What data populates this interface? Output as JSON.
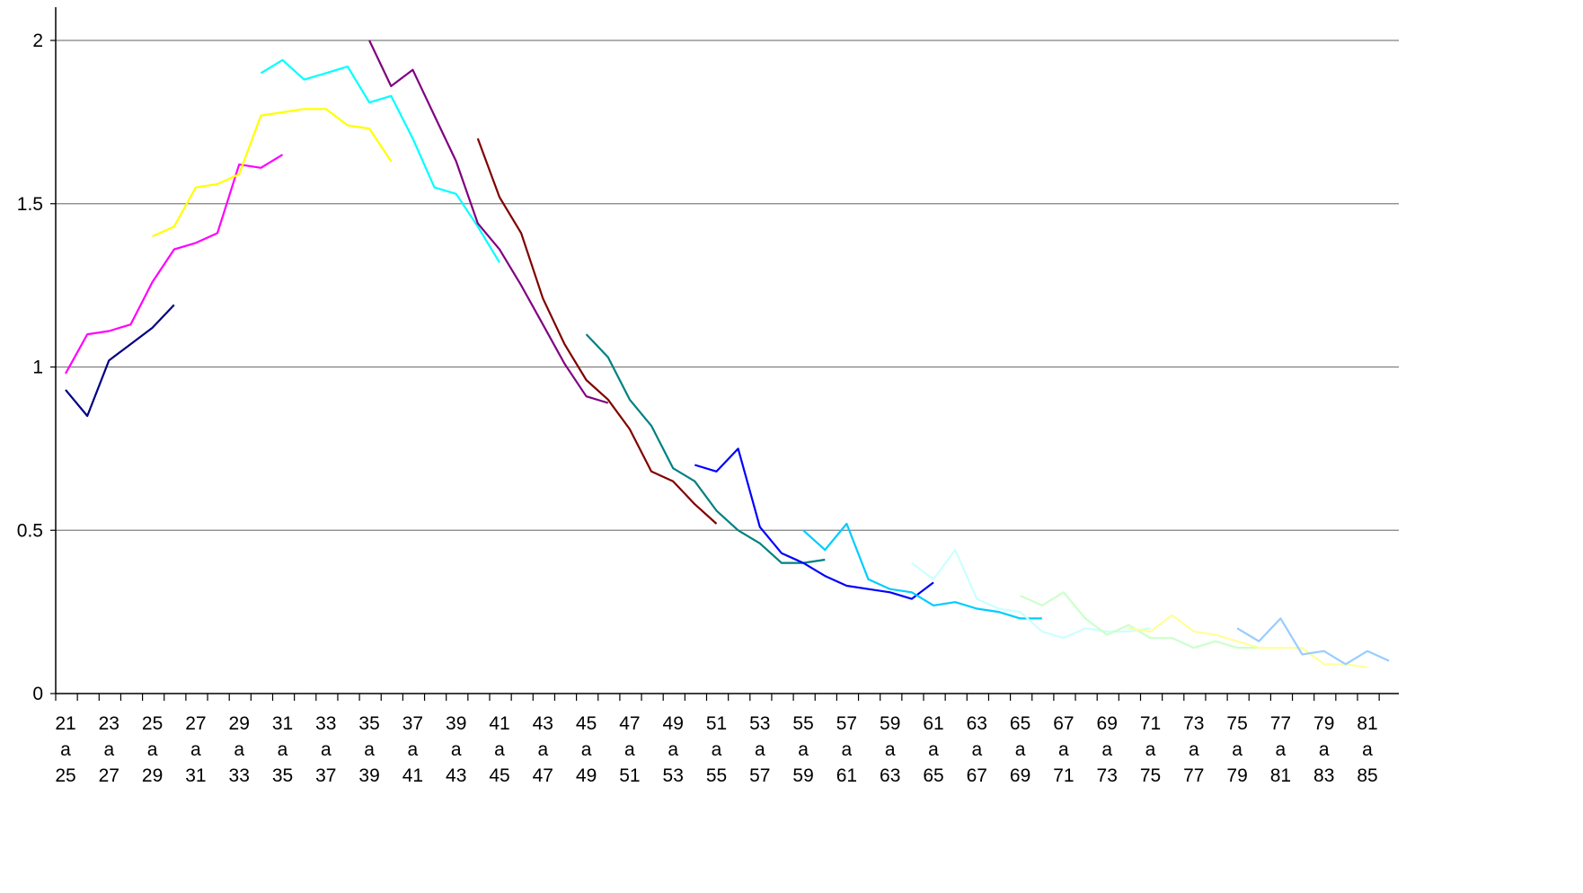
{
  "chart_data": {
    "type": "line",
    "title": "",
    "xlabel": "",
    "ylabel": "",
    "ylim": [
      0,
      2
    ],
    "yticks": [
      "0",
      "0.5",
      "1",
      "1.5",
      "2"
    ],
    "grid": true,
    "legend": "none",
    "x_ticks": [
      [
        "21",
        "a",
        "25"
      ],
      [
        "23",
        "a",
        "27"
      ],
      [
        "25",
        "a",
        "29"
      ],
      [
        "27",
        "a",
        "31"
      ],
      [
        "29",
        "a",
        "33"
      ],
      [
        "31",
        "a",
        "35"
      ],
      [
        "33",
        "a",
        "37"
      ],
      [
        "35",
        "a",
        "39"
      ],
      [
        "37",
        "a",
        "41"
      ],
      [
        "39",
        "a",
        "43"
      ],
      [
        "41",
        "a",
        "45"
      ],
      [
        "43",
        "a",
        "47"
      ],
      [
        "45",
        "a",
        "49"
      ],
      [
        "47",
        "a",
        "51"
      ],
      [
        "49",
        "a",
        "53"
      ],
      [
        "51",
        "a",
        "55"
      ],
      [
        "53",
        "a",
        "57"
      ],
      [
        "55",
        "a",
        "59"
      ],
      [
        "57",
        "a",
        "61"
      ],
      [
        "59",
        "a",
        "63"
      ],
      [
        "61",
        "a",
        "65"
      ],
      [
        "63",
        "a",
        "67"
      ],
      [
        "65",
        "a",
        "69"
      ],
      [
        "67",
        "a",
        "71"
      ],
      [
        "69",
        "a",
        "73"
      ],
      [
        "71",
        "a",
        "75"
      ],
      [
        "73",
        "a",
        "77"
      ],
      [
        "75",
        "a",
        "79"
      ],
      [
        "77",
        "a",
        "81"
      ],
      [
        "79",
        "a",
        "83"
      ],
      [
        "81",
        "a",
        "85"
      ]
    ],
    "series": [
      {
        "color": "#000080",
        "x": [
          21,
          22,
          23,
          24,
          25,
          26
        ],
        "values": [
          0.93,
          0.85,
          1.02,
          1.07,
          1.12,
          1.19
        ]
      },
      {
        "color": "#FF00FF",
        "x": [
          21,
          22,
          23,
          24,
          25,
          26,
          27,
          28,
          29,
          30,
          31
        ],
        "values": [
          0.98,
          1.1,
          1.11,
          1.13,
          1.26,
          1.36,
          1.38,
          1.41,
          1.62,
          1.61,
          1.65
        ]
      },
      {
        "color": "#FFFF00",
        "x": [
          25,
          26,
          27,
          28,
          29,
          30,
          31,
          32,
          33,
          34,
          35,
          36
        ],
        "values": [
          1.4,
          1.43,
          1.55,
          1.56,
          1.59,
          1.77,
          1.78,
          1.79,
          1.79,
          1.74,
          1.73,
          1.63
        ]
      },
      {
        "color": "#00FFFF",
        "x": [
          30,
          31,
          32,
          33,
          34,
          35,
          36,
          37,
          38,
          39,
          40,
          41
        ],
        "values": [
          1.9,
          1.94,
          1.88,
          1.9,
          1.92,
          1.81,
          1.83,
          1.7,
          1.55,
          1.53,
          1.43,
          1.32
        ]
      },
      {
        "color": "#800080",
        "x": [
          35,
          36,
          37,
          38,
          39,
          40,
          41,
          42,
          43,
          44,
          45,
          46
        ],
        "values": [
          2.0,
          1.86,
          1.91,
          1.77,
          1.63,
          1.44,
          1.36,
          1.25,
          1.13,
          1.01,
          0.91,
          0.89
        ]
      },
      {
        "color": "#800000",
        "x": [
          40,
          41,
          42,
          43,
          44,
          45,
          46,
          47,
          48,
          49,
          50,
          51
        ],
        "values": [
          1.7,
          1.52,
          1.41,
          1.21,
          1.07,
          0.96,
          0.9,
          0.81,
          0.68,
          0.65,
          0.58,
          0.52
        ]
      },
      {
        "color": "#008080",
        "x": [
          45,
          46,
          47,
          48,
          49,
          50,
          51,
          52,
          53,
          54,
          55,
          56
        ],
        "values": [
          1.1,
          1.03,
          0.9,
          0.82,
          0.69,
          0.65,
          0.56,
          0.5,
          0.46,
          0.4,
          0.4,
          0.41
        ]
      },
      {
        "color": "#0000FF",
        "x": [
          50,
          51,
          52,
          53,
          54,
          55,
          56,
          57,
          58,
          59,
          60,
          61
        ],
        "values": [
          0.7,
          0.68,
          0.75,
          0.51,
          0.43,
          0.4,
          0.36,
          0.33,
          0.32,
          0.31,
          0.29,
          0.34
        ]
      },
      {
        "color": "#00CCFF",
        "x": [
          55,
          56,
          57,
          58,
          59,
          60,
          61,
          62,
          63,
          64,
          65,
          66
        ],
        "values": [
          0.5,
          0.44,
          0.52,
          0.35,
          0.32,
          0.31,
          0.27,
          0.28,
          0.26,
          0.25,
          0.23,
          0.23
        ]
      },
      {
        "color": "#CCFFFF",
        "x": [
          60,
          61,
          62,
          63,
          64,
          65,
          66,
          67,
          68,
          69,
          70,
          71
        ],
        "values": [
          0.4,
          0.35,
          0.44,
          0.29,
          0.26,
          0.25,
          0.19,
          0.17,
          0.2,
          0.19,
          0.19,
          0.2
        ]
      },
      {
        "color": "#CCFFCC",
        "x": [
          65,
          66,
          67,
          68,
          69,
          70,
          71,
          72,
          73,
          74,
          75,
          76
        ],
        "values": [
          0.3,
          0.27,
          0.31,
          0.23,
          0.18,
          0.21,
          0.17,
          0.17,
          0.14,
          0.16,
          0.14,
          0.14
        ]
      },
      {
        "color": "#FFFF99",
        "x": [
          70,
          71,
          72,
          73,
          74,
          75,
          76,
          77,
          78,
          79,
          80,
          81
        ],
        "values": [
          0.2,
          0.19,
          0.24,
          0.19,
          0.18,
          0.16,
          0.14,
          0.14,
          0.14,
          0.09,
          0.09,
          0.08
        ]
      },
      {
        "color": "#99CCFF",
        "x": [
          75,
          76,
          77,
          78,
          79,
          80,
          81,
          82
        ],
        "values": [
          0.2,
          0.16,
          0.23,
          0.12,
          0.13,
          0.09,
          0.13,
          0.1
        ]
      }
    ]
  }
}
